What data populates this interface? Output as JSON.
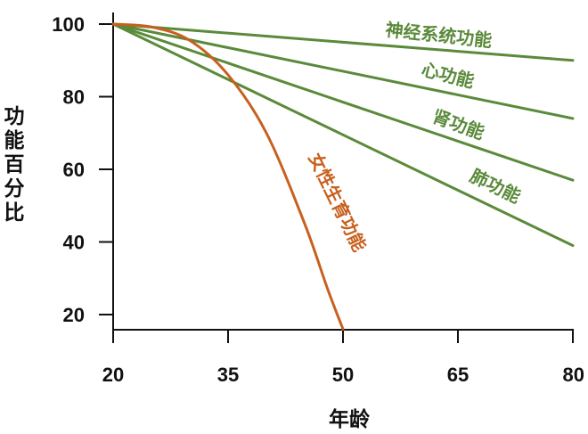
{
  "chart_data": {
    "type": "line",
    "xlabel": "年龄",
    "ylabel": "功能百分比",
    "xlim": [
      20,
      80
    ],
    "ylim": [
      15,
      100
    ],
    "x_ticks": [
      "20",
      "35",
      "50",
      "65",
      "80"
    ],
    "y_ticks": [
      "100",
      "80",
      "60",
      "40",
      "20"
    ],
    "grid": false,
    "legend": "none",
    "series": [
      {
        "name": "神经系统功能",
        "color": "#5a8a3a",
        "x": [
          20,
          80
        ],
        "y": [
          100,
          90
        ]
      },
      {
        "name": "心功能",
        "color": "#5a8a3a",
        "x": [
          20,
          80
        ],
        "y": [
          100,
          74
        ]
      },
      {
        "name": "肾功能",
        "color": "#5a8a3a",
        "x": [
          20,
          80
        ],
        "y": [
          100,
          57
        ]
      },
      {
        "name": "肺功能",
        "color": "#5a8a3a",
        "x": [
          20,
          80
        ],
        "y": [
          100,
          39
        ]
      },
      {
        "name": "女性生育功能",
        "color": "#c8601e",
        "x": [
          20,
          25,
          30,
          35,
          40,
          45,
          48,
          50
        ],
        "y": [
          100,
          99.2,
          95.5,
          86,
          70,
          45,
          27,
          16
        ]
      }
    ]
  }
}
